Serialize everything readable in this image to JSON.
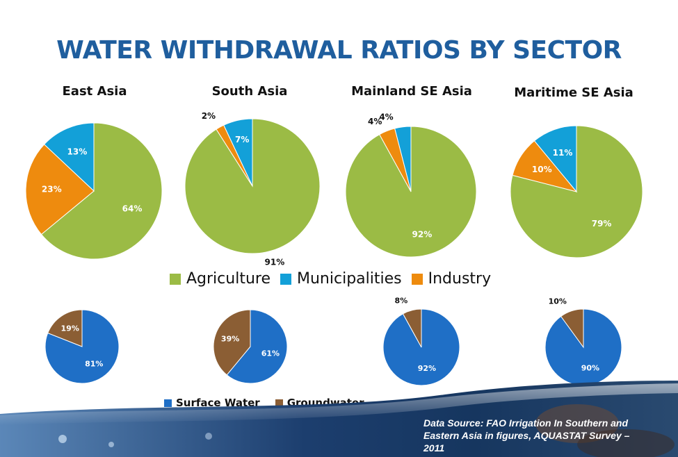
{
  "title": "WATER WITHDRAWAL RATIOS BY SECTOR",
  "legend_sector": [
    {
      "label": "Agriculture",
      "color": "#9bbb45"
    },
    {
      "label": "Municipalities",
      "color": "#13a0d8"
    },
    {
      "label": "Industry",
      "color": "#ee8b0e"
    }
  ],
  "legend_source": [
    {
      "label": "Surface Water",
      "color": "#1f6fc6"
    },
    {
      "label": "Groundwater",
      "color": "#8b5e34"
    }
  ],
  "source_text": "Data Source: FAO Irrigation In Southern and Eastern Asia in figures, AQUASTAT Survey – 2011",
  "chart_data": [
    {
      "type": "pie",
      "title": "East Asia",
      "labels": [
        "Agriculture",
        "Municipalities",
        "Industry"
      ],
      "values": [
        64,
        13,
        23
      ],
      "value_labels": [
        "64%",
        "13%",
        "23%"
      ],
      "colors": [
        "#9bbb45",
        "#13a0d8",
        "#ee8b0e"
      ]
    },
    {
      "type": "pie",
      "title": "South Asia",
      "labels": [
        "Agriculture",
        "Municipalities",
        "Industry"
      ],
      "values": [
        91,
        7,
        2
      ],
      "value_labels": [
        "91%",
        "7%",
        "2%"
      ],
      "colors": [
        "#9bbb45",
        "#13a0d8",
        "#ee8b0e"
      ]
    },
    {
      "type": "pie",
      "title": "Mainland SE Asia",
      "labels": [
        "Agriculture",
        "Municipalities",
        "Industry"
      ],
      "values": [
        92,
        4,
        4
      ],
      "value_labels": [
        "92%",
        "4%",
        "4%"
      ],
      "colors": [
        "#9bbb45",
        "#13a0d8",
        "#ee8b0e"
      ]
    },
    {
      "type": "pie",
      "title": "Maritime SE Asia",
      "labels": [
        "Agriculture",
        "Municipalities",
        "Industry"
      ],
      "values": [
        79,
        11,
        10
      ],
      "value_labels": [
        "79%",
        "11%",
        "10%"
      ],
      "colors": [
        "#9bbb45",
        "#13a0d8",
        "#ee8b0e"
      ]
    },
    {
      "type": "pie",
      "title": "",
      "labels": [
        "Surface Water",
        "Groundwater"
      ],
      "values": [
        81,
        19
      ],
      "value_labels": [
        "81%",
        "19%"
      ],
      "colors": [
        "#1f6fc6",
        "#8b5e34"
      ]
    },
    {
      "type": "pie",
      "title": "",
      "labels": [
        "Surface Water",
        "Groundwater"
      ],
      "values": [
        61,
        39
      ],
      "value_labels": [
        "61%",
        "39%"
      ],
      "colors": [
        "#1f6fc6",
        "#8b5e34"
      ]
    },
    {
      "type": "pie",
      "title": "",
      "labels": [
        "Surface Water",
        "Groundwater"
      ],
      "values": [
        92,
        8
      ],
      "value_labels": [
        "92%",
        "8%"
      ],
      "colors": [
        "#1f6fc6",
        "#8b5e34"
      ]
    },
    {
      "type": "pie",
      "title": "",
      "labels": [
        "Surface Water",
        "Groundwater"
      ],
      "values": [
        90,
        10
      ],
      "value_labels": [
        "90%",
        "10%"
      ],
      "colors": [
        "#1f6fc6",
        "#8b5e34"
      ]
    }
  ]
}
